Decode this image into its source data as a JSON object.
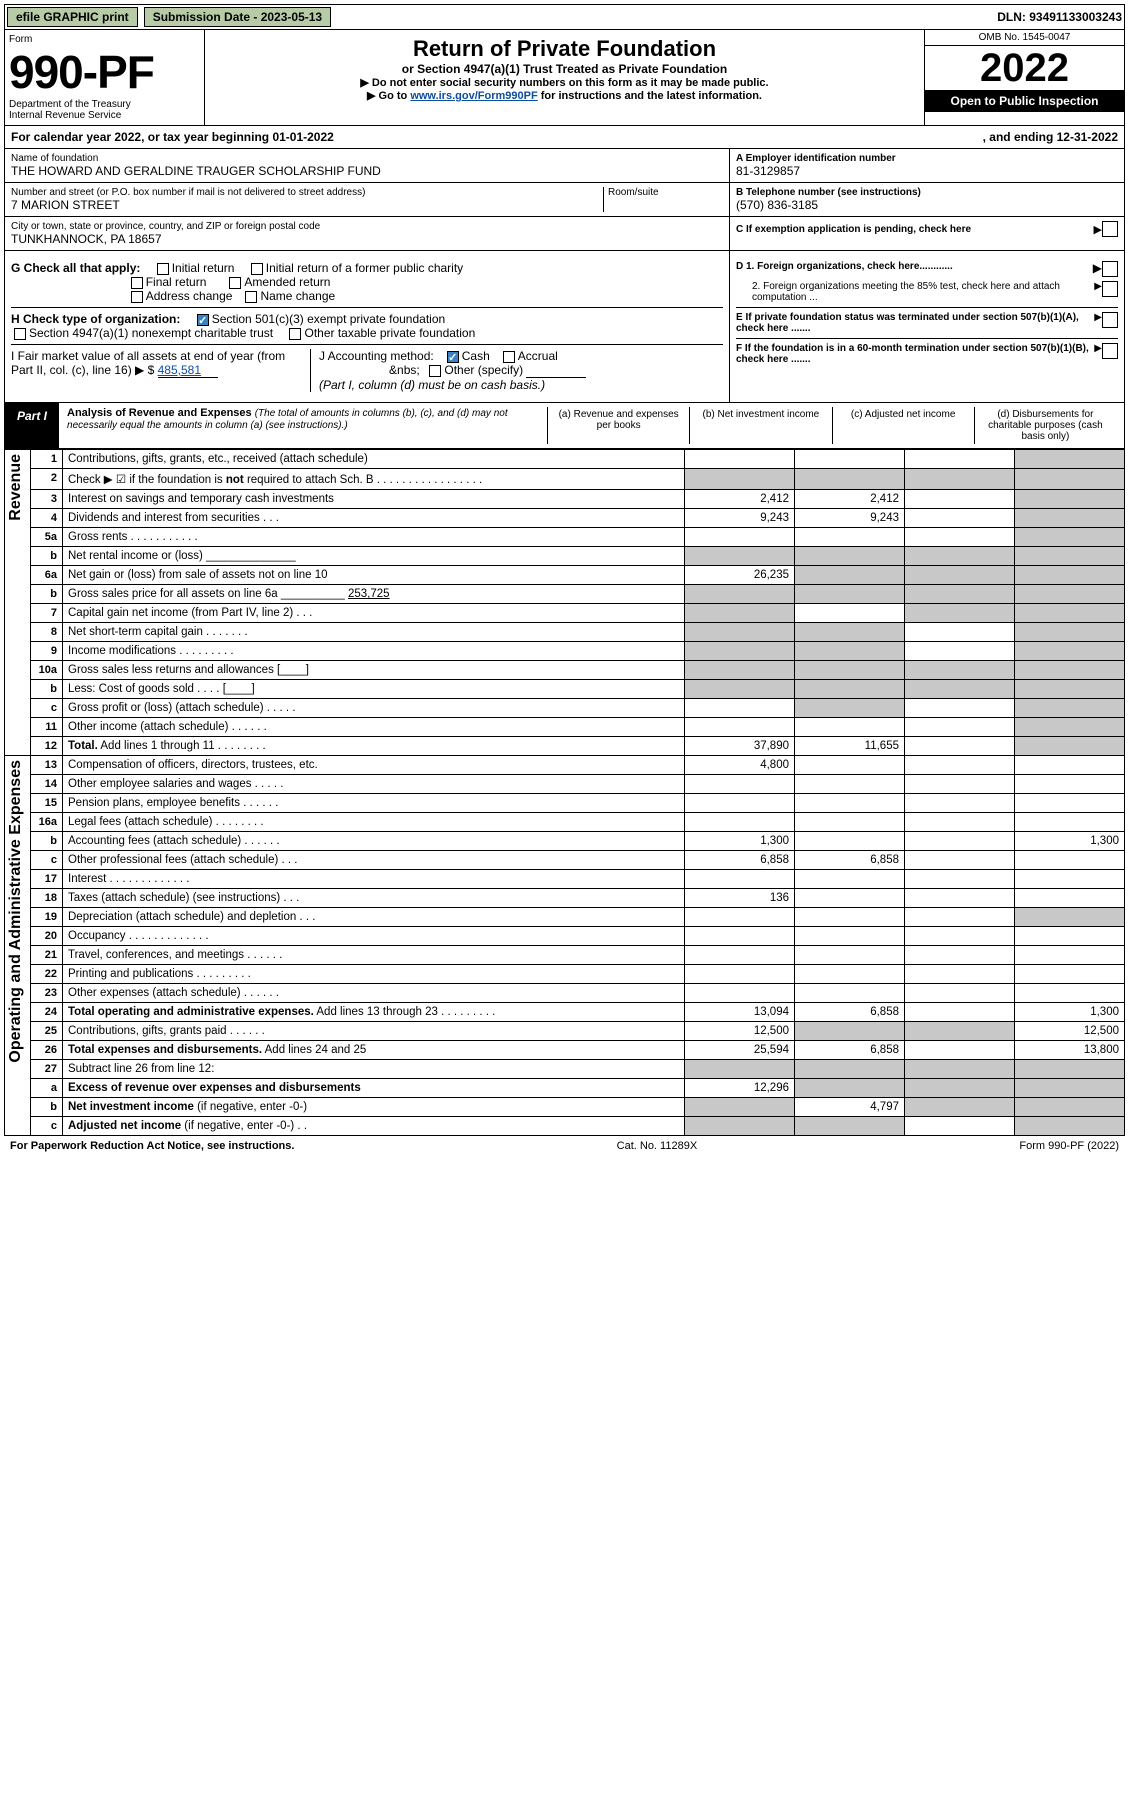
{
  "topbar": {
    "efile": "efile GRAPHIC print",
    "sub_label": "Submission Date - 2023-05-13",
    "dln": "DLN: 93491133003243"
  },
  "header": {
    "form_word": "Form",
    "form_number": "990-PF",
    "dept": "Department of the Treasury",
    "irs": "Internal Revenue Service",
    "title": "Return of Private Foundation",
    "subtitle": "or Section 4947(a)(1) Trust Treated as Private Foundation",
    "inst1": "▶ Do not enter social security numbers on this form as it may be made public.",
    "inst2_pre": "▶ Go to ",
    "inst2_link": "www.irs.gov/Form990PF",
    "inst2_post": " for instructions and the latest information.",
    "omb": "OMB No. 1545-0047",
    "year": "2022",
    "open": "Open to Public Inspection"
  },
  "calendar": {
    "text": "For calendar year 2022, or tax year beginning 01-01-2022",
    "end": ", and ending 12-31-2022"
  },
  "entity": {
    "name_label": "Name of foundation",
    "name": "THE HOWARD AND GERALDINE TRAUGER SCHOLARSHIP FUND",
    "addr_label": "Number and street (or P.O. box number if mail is not delivered to street address)",
    "room_label": "Room/suite",
    "address": "7 MARION STREET",
    "city_label": "City or town, state or province, country, and ZIP or foreign postal code",
    "city": "TUNKHANNOCK, PA  18657",
    "ein_label": "A Employer identification number",
    "ein": "81-3129857",
    "tel_label": "B Telephone number (see instructions)",
    "tel": "(570) 836-3185",
    "c_label": "C If exemption application is pending, check here"
  },
  "checks": {
    "g_label": "G Check all that apply:",
    "g_items": [
      "Initial return",
      "Initial return of a former public charity",
      "Final return",
      "Amended return",
      "Address change",
      "Name change"
    ],
    "h_label": "H Check type of organization:",
    "h1": "Section 501(c)(3) exempt private foundation",
    "h2": "Section 4947(a)(1) nonexempt charitable trust",
    "h3": "Other taxable private foundation",
    "i_label": "I Fair market value of all assets at end of year (from Part II, col. (c), line 16) ▶ $",
    "i_val": "485,581",
    "j_label": "J Accounting method:",
    "j_cash": "Cash",
    "j_accrual": "Accrual",
    "j_other": "Other (specify)",
    "j_note": "(Part I, column (d) must be on cash basis.)",
    "d1": "D 1. Foreign organizations, check here............",
    "d2": "2. Foreign organizations meeting the 85% test, check here and attach computation ...",
    "e": "E  If private foundation status was terminated under section 507(b)(1)(A), check here .......",
    "f": "F  If the foundation is in a 60-month termination under section 507(b)(1)(B), check here .......",
    "arrow_glyph": "▶"
  },
  "part1": {
    "tab": "Part I",
    "title": "Analysis of Revenue and Expenses",
    "note": "(The total of amounts in columns (b), (c), and (d) may not necessarily equal the amounts in column (a) (see instructions).)",
    "col_a": "(a)    Revenue and expenses per books",
    "col_b": "(b)    Net investment income",
    "col_c": "(c)    Adjusted net income",
    "col_d": "(d)    Disbursements for charitable purposes (cash basis only)"
  },
  "sections": {
    "revenue": "Revenue",
    "opexp": "Operating and Administrative Expenses"
  },
  "rows": [
    {
      "n": "1",
      "label": "Contributions, gifts, grants, etc., received (attach schedule)",
      "a": "",
      "b": "",
      "c": "",
      "d": "shade"
    },
    {
      "n": "2",
      "label": "Check ▶ ☑ if the foundation is <b>not</b> required to attach Sch. B  .  .  .  .  .  .  .  .  .  .  .  .  .  .  .  .  .",
      "a": "shade",
      "b": "shade",
      "c": "shade",
      "d": "shade"
    },
    {
      "n": "3",
      "label": "Interest on savings and temporary cash investments",
      "a": "2,412",
      "b": "2,412",
      "c": "",
      "d": "shade"
    },
    {
      "n": "4",
      "label": "Dividends and interest from securities    .    .    .",
      "a": "9,243",
      "b": "9,243",
      "c": "",
      "d": "shade"
    },
    {
      "n": "5a",
      "label": "Gross rents    .    .    .    .    .    .    .    .    .    .    .",
      "a": "",
      "b": "",
      "c": "",
      "d": "shade"
    },
    {
      "n": "b",
      "label": "Net rental income or (loss)  ______________",
      "a": "shade",
      "b": "shade",
      "c": "shade",
      "d": "shade"
    },
    {
      "n": "6a",
      "label": "Net gain or (loss) from sale of assets not on line 10",
      "a": "26,235",
      "b": "shade",
      "c": "shade",
      "d": "shade"
    },
    {
      "n": "b",
      "label": "Gross sales price for all assets on line 6a __________ <u>253,725</u>",
      "a": "shade",
      "b": "shade",
      "c": "shade",
      "d": "shade"
    },
    {
      "n": "7",
      "label": "Capital gain net income (from Part IV, line 2)    .    .    .",
      "a": "shade",
      "b": "",
      "c": "shade",
      "d": "shade"
    },
    {
      "n": "8",
      "label": "Net short-term capital gain  .    .    .    .    .    .    .",
      "a": "shade",
      "b": "shade",
      "c": "",
      "d": "shade"
    },
    {
      "n": "9",
      "label": "Income modifications .    .    .    .    .    .    .    .    .",
      "a": "shade",
      "b": "shade",
      "c": "",
      "d": "shade"
    },
    {
      "n": "10a",
      "label": "Gross sales less returns and allowances  [____]",
      "a": "shade",
      "b": "shade",
      "c": "shade",
      "d": "shade"
    },
    {
      "n": "b",
      "label": "Less: Cost of goods sold    .    .    .    .  [____]",
      "a": "shade",
      "b": "shade",
      "c": "shade",
      "d": "shade"
    },
    {
      "n": "c",
      "label": "Gross profit or (loss) (attach schedule)    .    .    .    .    .",
      "a": "",
      "b": "shade",
      "c": "",
      "d": "shade"
    },
    {
      "n": "11",
      "label": "Other income (attach schedule)    .    .    .    .    .    .",
      "a": "",
      "b": "",
      "c": "",
      "d": "shade"
    },
    {
      "n": "12",
      "label": "<b>Total.</b> Add lines 1 through 11    .    .    .    .    .    .    .    .",
      "a": "37,890",
      "b": "11,655",
      "c": "",
      "d": "shade"
    },
    {
      "n": "13",
      "label": "Compensation of officers, directors, trustees, etc.",
      "a": "4,800",
      "b": "",
      "c": "",
      "d": ""
    },
    {
      "n": "14",
      "label": "Other employee salaries and wages    .    .    .    .    .",
      "a": "",
      "b": "",
      "c": "",
      "d": ""
    },
    {
      "n": "15",
      "label": "Pension plans, employee benefits  .    .    .    .    .    .",
      "a": "",
      "b": "",
      "c": "",
      "d": ""
    },
    {
      "n": "16a",
      "label": "Legal fees (attach schedule) .    .    .    .    .    .    .    .",
      "a": "",
      "b": "",
      "c": "",
      "d": ""
    },
    {
      "n": "b",
      "label": "Accounting fees (attach schedule) .    .    .    .    .    .",
      "a": "1,300",
      "b": "",
      "c": "",
      "d": "1,300"
    },
    {
      "n": "c",
      "label": "Other professional fees (attach schedule)    .    .    .",
      "a": "6,858",
      "b": "6,858",
      "c": "",
      "d": ""
    },
    {
      "n": "17",
      "label": "Interest  .    .    .    .    .    .    .    .    .    .    .    .    .",
      "a": "",
      "b": "",
      "c": "",
      "d": ""
    },
    {
      "n": "18",
      "label": "Taxes (attach schedule) (see instructions)    .    .    .",
      "a": "136",
      "b": "",
      "c": "",
      "d": ""
    },
    {
      "n": "19",
      "label": "Depreciation (attach schedule) and depletion    .    .    .",
      "a": "",
      "b": "",
      "c": "",
      "d": "shade"
    },
    {
      "n": "20",
      "label": "Occupancy .    .    .    .    .    .    .    .    .    .    .    .    .",
      "a": "",
      "b": "",
      "c": "",
      "d": ""
    },
    {
      "n": "21",
      "label": "Travel, conferences, and meetings  .    .    .    .    .    .",
      "a": "",
      "b": "",
      "c": "",
      "d": ""
    },
    {
      "n": "22",
      "label": "Printing and publications .    .    .    .    .    .    .    .    .",
      "a": "",
      "b": "",
      "c": "",
      "d": ""
    },
    {
      "n": "23",
      "label": "Other expenses (attach schedule)  .    .    .    .    .    .",
      "a": "",
      "b": "",
      "c": "",
      "d": ""
    },
    {
      "n": "24",
      "label": "<b>Total operating and administrative expenses.</b> Add lines 13 through 23    .    .    .    .    .    .    .    .    .",
      "a": "13,094",
      "b": "6,858",
      "c": "",
      "d": "1,300"
    },
    {
      "n": "25",
      "label": "Contributions, gifts, grants paid    .    .    .    .    .    .",
      "a": "12,500",
      "b": "shade",
      "c": "shade",
      "d": "12,500"
    },
    {
      "n": "26",
      "label": "<b>Total expenses and disbursements.</b> Add lines 24 and 25",
      "a": "25,594",
      "b": "6,858",
      "c": "",
      "d": "13,800"
    },
    {
      "n": "27",
      "label": "Subtract line 26 from line 12:",
      "a": "shade",
      "b": "shade",
      "c": "shade",
      "d": "shade"
    },
    {
      "n": "a",
      "label": "<b>Excess of revenue over expenses and disbursements</b>",
      "a": "12,296",
      "b": "shade",
      "c": "shade",
      "d": "shade"
    },
    {
      "n": "b",
      "label": "<b>Net investment income</b> (if negative, enter -0-)",
      "a": "shade",
      "b": "4,797",
      "c": "shade",
      "d": "shade"
    },
    {
      "n": "c",
      "label": "<b>Adjusted net income</b> (if negative, enter -0-)    .    .",
      "a": "shade",
      "b": "shade",
      "c": "",
      "d": "shade"
    }
  ],
  "footer": {
    "left": "For Paperwork Reduction Act Notice, see instructions.",
    "mid": "Cat. No. 11289X",
    "right": "Form 990-PF (2022)"
  }
}
